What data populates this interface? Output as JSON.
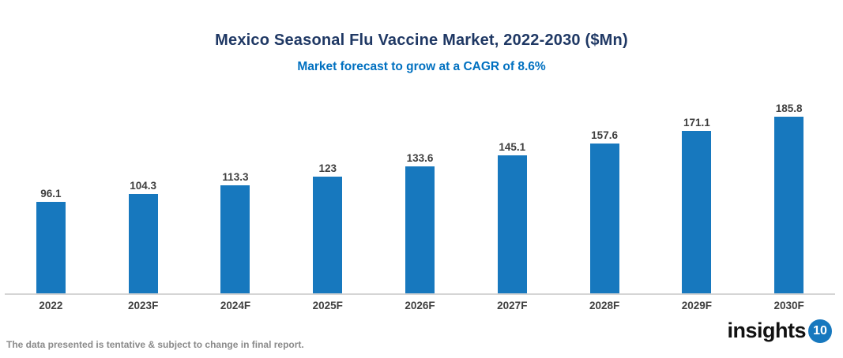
{
  "header": {
    "title": "Mexico Seasonal Flu Vaccine Market, 2022-2030 ($Mn)",
    "subtitle": "Market forecast to grow at a CAGR of 8.6%"
  },
  "chart_data": {
    "type": "bar",
    "title": "Mexico Seasonal Flu Vaccine Market, 2022-2030 ($Mn)",
    "subtitle": "Market forecast to grow at a CAGR of 8.6%",
    "categories": [
      "2022",
      "2023F",
      "2024F",
      "2025F",
      "2026F",
      "2027F",
      "2028F",
      "2029F",
      "2030F"
    ],
    "values": [
      96.1,
      104.3,
      113.3,
      123,
      133.6,
      145.1,
      157.6,
      171.1,
      185.8
    ],
    "xlabel": "",
    "ylabel": "",
    "ylim": [
      0,
      200
    ],
    "grid": false,
    "legend_position": "none",
    "bar_color": "#1778BE",
    "value_label_color": "#3F3F3F",
    "axis_line_color": "#D5D5D5"
  },
  "footer": {
    "disclaimer": "The data presented is tentative & subject to change in final report.",
    "logo_text": "insights",
    "logo_badge": "10",
    "logo_badge_color": "#1778BE"
  },
  "colors": {
    "title": "#1F3864",
    "subtitle": "#0070C0",
    "background": "#ffffff"
  }
}
